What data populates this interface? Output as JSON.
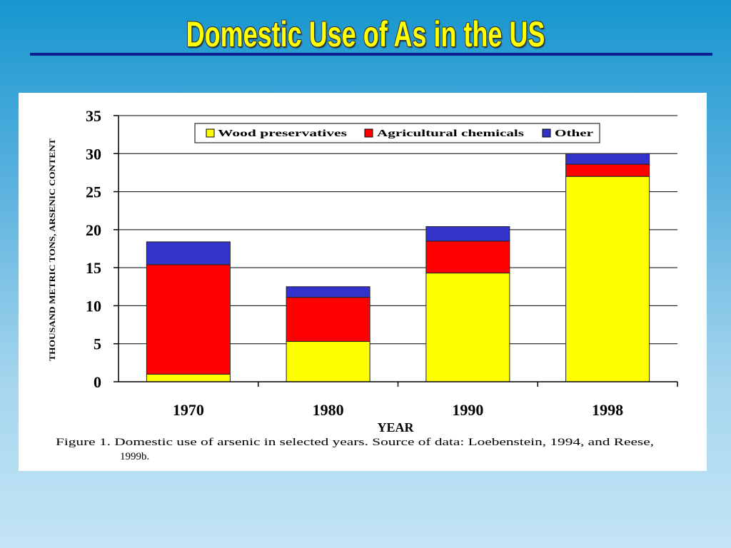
{
  "slide": {
    "title": "Domestic Use of As in the US",
    "caption_line1": "Figure 1.   Domestic use of arsenic in selected years.  Source of data: Loebenstein, 1994, and Reese,",
    "caption_line2": "1999b."
  },
  "chart_data": {
    "type": "bar",
    "stacked": true,
    "categories": [
      "1970",
      "1980",
      "1990",
      "1998"
    ],
    "series": [
      {
        "name": "Wood preservatives",
        "color": "#ffff00",
        "values": [
          1,
          5.3,
          14.3,
          27
        ]
      },
      {
        "name": "Agricultural chemicals",
        "color": "#ff0000",
        "values": [
          14.4,
          5.8,
          4.2,
          1.6
        ]
      },
      {
        "name": "Other",
        "color": "#3333cc",
        "values": [
          3,
          1.4,
          1.9,
          1.4
        ]
      }
    ],
    "xlabel": "YEAR",
    "ylabel": "THOUSAND METRIC TONS, ARSENIC CONTENT",
    "ylim": [
      0,
      35
    ],
    "yticks": [
      "0",
      "5",
      "10",
      "15",
      "20",
      "25",
      "30",
      "35"
    ],
    "grid": true,
    "legend_position": "top"
  }
}
